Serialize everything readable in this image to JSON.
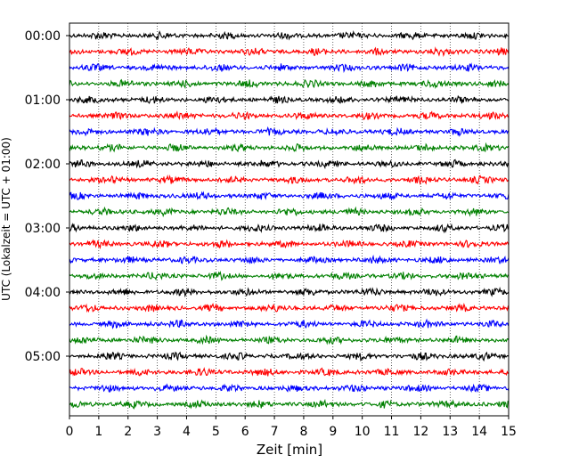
{
  "chart_data": {
    "type": "line",
    "title": "",
    "xlabel": "Zeit  [min]",
    "ylabel": "UTC (Lokalzeit = UTC + 01:00)",
    "xlim": [
      0,
      15
    ],
    "x_ticks": [
      "0",
      "1",
      "2",
      "3",
      "4",
      "5",
      "6",
      "7",
      "8",
      "9",
      "10",
      "11",
      "12",
      "13",
      "14",
      "15"
    ],
    "y_ticks": [
      "00:00",
      "01:00",
      "02:00",
      "03:00",
      "04:00",
      "05:00"
    ],
    "traces_per_hour": 4,
    "trace_count": 24,
    "trace_colors": [
      "#000000",
      "#ff0000",
      "#0000ff",
      "#008000"
    ],
    "grid": "vertical dotted",
    "legend": "none"
  }
}
